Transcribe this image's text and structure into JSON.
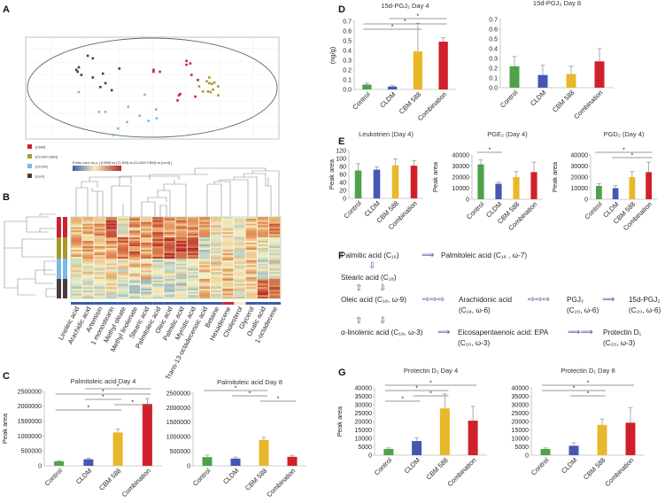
{
  "panels": {
    "A": "A",
    "B": "B",
    "C": "C",
    "D": "D",
    "E": "E",
    "F": "F",
    "G": "G"
  },
  "colors": {
    "Control": "#4ea24a",
    "CLDM": "#4457b5",
    "CBM 588": "#e8b82a",
    "Combination": "#d0202a",
    "error": "#9a9a9a"
  },
  "pca": {
    "groups": [
      {
        "name": "[CBM]",
        "color": "#cc2233",
        "points": [
          [
            0.1,
            1.4
          ],
          [
            0.1,
            1.25
          ],
          [
            0.6,
            1.25
          ],
          [
            2.7,
            2.1
          ],
          [
            2.7,
            1.8
          ],
          [
            3.0,
            1.9
          ],
          [
            3.1,
            1.0
          ],
          [
            3.6,
            0.6
          ],
          [
            3.4,
            -0.7
          ],
          [
            2.2,
            -0.5
          ],
          [
            2.1,
            -0.6
          ],
          [
            2.0,
            -1.0
          ]
        ]
      },
      {
        "name": "[CLDM+CBM]",
        "color": "#a89a2a",
        "points": [
          [
            4.5,
            0.8
          ],
          [
            4.3,
            0.5
          ],
          [
            4.5,
            0.35
          ],
          [
            4.7,
            0.3
          ],
          [
            4.9,
            0.4
          ],
          [
            5.2,
            0.1
          ],
          [
            3.7,
            0.1
          ],
          [
            4.0,
            -0.3
          ],
          [
            4.4,
            -0.3
          ],
          [
            4.6,
            -0.35
          ],
          [
            4.8,
            -0.15
          ],
          [
            5.2,
            -0.6
          ]
        ]
      },
      {
        "name": "[CLDM]",
        "color": "#7ab8e6",
        "points": [
          [
            -5.8,
            -0.35
          ],
          [
            -0.6,
            -0.55
          ],
          [
            0.3,
            -1.7
          ],
          [
            -1.9,
            -1.5
          ],
          [
            -3.7,
            -1.9
          ],
          [
            -4.2,
            -1.9
          ],
          [
            -1.0,
            -2.2
          ],
          [
            0.35,
            -2.4
          ],
          [
            -0.3,
            -2.6
          ],
          [
            -2.0,
            -2.7
          ],
          [
            -2.7,
            -3.2
          ],
          [
            -3.1,
            -3.7
          ]
        ]
      },
      {
        "name": "[cont]",
        "color": "#4a3c3c",
        "points": [
          [
            -5.1,
            2.5
          ],
          [
            -4.7,
            2.3
          ],
          [
            -5.8,
            1.6
          ],
          [
            -6.0,
            1.4
          ],
          [
            -5.9,
            1.25
          ],
          [
            -5.6,
            1.0
          ],
          [
            -3.9,
            1.1
          ],
          [
            -2.6,
            1.5
          ],
          [
            -4.7,
            0.8
          ],
          [
            -3.7,
            0.35
          ],
          [
            -4.1,
            0.05
          ],
          [
            -3.2,
            -0.2
          ]
        ]
      }
    ]
  },
  "heatmap": {
    "scale_title": "Entity color by p ( [CBM] vs [CLDM] vs [CLDM+CBM] vs [cont] )",
    "columns": [
      "Linoleic acid",
      "Arachidic acid",
      "Artemisin",
      "1 monostearin",
      "Methyl oleate",
      "Methyl linolenate",
      "Stearic acid",
      "Palmitoleic acid",
      "Oleic acid",
      "Palmitic acid",
      "Myristic acid",
      "Trans-13-octadecenoic acid",
      "Betaine",
      "Hexadecene",
      "Cholesterol",
      "Glycerol",
      "Oxalic acid",
      "1-octadecene"
    ],
    "groups": [
      "[CBM]",
      "[CLDM+CBM]",
      "[CLDM]",
      "[cont]"
    ],
    "levels": [
      [
        0.65,
        0.65,
        0.7,
        0.9,
        0.5,
        0.7,
        0.7,
        0.8,
        0.7,
        0.75,
        0.75,
        0.7,
        0.55,
        0.55,
        0.5,
        0.6,
        0.7,
        0.75
      ],
      [
        0.65,
        0.65,
        0.65,
        0.7,
        0.8,
        0.8,
        0.7,
        0.85,
        0.9,
        0.9,
        0.9,
        0.4,
        0.5,
        0.6,
        0.5,
        0.6,
        0.5,
        0.45
      ],
      [
        0.5,
        0.55,
        0.55,
        0.55,
        0.5,
        0.6,
        0.6,
        0.45,
        0.45,
        0.45,
        0.45,
        0.6,
        0.55,
        0.6,
        0.5,
        0.6,
        0.45,
        0.45
      ],
      [
        0.45,
        0.45,
        0.4,
        0.5,
        0.45,
        0.4,
        0.4,
        0.4,
        0.4,
        0.4,
        0.4,
        0.6,
        0.5,
        0.65,
        0.5,
        0.6,
        0.85,
        0.85
      ]
    ]
  },
  "pathway": {
    "palmitic": "Palmitic acid (C₁₆)",
    "palmitoleic": "Palmitoleic acid (C₁₆ , ω-7)",
    "stearic": "Stearic acid (C₁₈)",
    "oleic": "Oleic acid (C₁₈, ω-9)",
    "arachidonic": "Arachidonic acid",
    "arachidonic_sub": "(C₁₈, ω-6)",
    "pgj2": "PGJ₂",
    "pgj2_sub": "(C₂₀, ω-6)",
    "d15pgj2": "15d-PGJ₂",
    "d15pgj2_sub": "(C₂₀, ω-6)",
    "linolenic": "α-linolenic acid (C₁₈, ω-3)",
    "epa": "Eicosapentaenoic acid: EPA",
    "epa_sub": "(C₂₀, ω-3)",
    "protectin": "Protectin D₁",
    "protectin_sub": "(C₂₀, ω-3)"
  },
  "chart_data": [
    {
      "id": "C1",
      "type": "bar",
      "title": "Palmitoleic acid Day 4",
      "ylabel": "Peak area",
      "categories": [
        "Control",
        "CLDM",
        "CBM 588",
        "Combination"
      ],
      "values": [
        150000,
        220000,
        1120000,
        2080000
      ],
      "errors": [
        20000,
        40000,
        110000,
        180000
      ],
      "ylim": [
        0,
        2500000
      ],
      "yticks": [
        "0",
        "500000",
        "1000000",
        "1500000",
        "2000000",
        "2500000"
      ],
      "significance": [
        [
          1,
          3
        ],
        [
          0,
          3
        ],
        [
          1,
          2
        ],
        [
          2,
          3
        ],
        [
          0,
          2
        ]
      ],
      "sig_label": "*"
    },
    {
      "id": "C2",
      "type": "bar",
      "title": "Palmitoleic acid Day 8",
      "ylabel": "",
      "categories": [
        "Control",
        "CLDM",
        "CBM 588",
        "Combination"
      ],
      "values": [
        300000,
        250000,
        890000,
        310000
      ],
      "errors": [
        70000,
        50000,
        90000,
        50000
      ],
      "ylim": [
        0,
        2500000
      ],
      "yticks": [
        "0",
        "500000",
        "1000000",
        "1500000",
        "2000000",
        "2500000"
      ],
      "significance": [
        [
          0,
          2
        ],
        [
          1,
          2
        ],
        [
          2,
          3
        ]
      ],
      "sig_label": "*"
    },
    {
      "id": "D1",
      "type": "bar",
      "title": "15d-PGJ₂  Day 4",
      "ylabel": "(ng/g)",
      "categories": [
        "Control",
        "CLDM",
        "CBM 588",
        "Combination"
      ],
      "values": [
        0.05,
        0.03,
        0.39,
        0.49
      ],
      "errors": [
        0.015,
        0.01,
        0.29,
        0.04
      ],
      "ylim": [
        0,
        0.7
      ],
      "yticks": [
        "0.0",
        "0.1",
        "0.2",
        "0.3",
        "0.4",
        "0.5",
        "0.6",
        "0.7"
      ],
      "significance": [
        [
          1,
          3
        ],
        [
          0,
          3
        ],
        [
          0,
          2
        ]
      ],
      "sig_label": "*"
    },
    {
      "id": "D2",
      "type": "bar",
      "title": "15d-PGJ₂ Day 8",
      "ylabel": "",
      "categories": [
        "Control",
        "CLDM",
        "CBM 588",
        "Combination"
      ],
      "values": [
        0.22,
        0.13,
        0.14,
        0.27
      ],
      "errors": [
        0.1,
        0.1,
        0.08,
        0.13
      ],
      "ylim": [
        0,
        0.7
      ],
      "yticks": [
        "0.0",
        "0.1",
        "0.2",
        "0.3",
        "0.4",
        "0.5",
        "0.6",
        "0.7"
      ],
      "significance": [],
      "sig_label": "*"
    },
    {
      "id": "E1",
      "type": "bar",
      "title": "Leukotrien (Day 4)",
      "ylabel": "Peak area",
      "categories": [
        "Control",
        "CLDM",
        "CBM 588",
        "Combination"
      ],
      "values": [
        70,
        72,
        83,
        82
      ],
      "errors": [
        17,
        7,
        16,
        13
      ],
      "ylim": [
        0,
        120
      ],
      "yticks": [
        "0",
        "20",
        "40",
        "60",
        "80",
        "100",
        "120"
      ],
      "significance": [],
      "sig_label": "*"
    },
    {
      "id": "E2",
      "type": "bar",
      "title": "PGE₂ (Day 4)",
      "ylabel": "Peak area",
      "categories": [
        "Control",
        "CLDM",
        "CBM 588",
        "Combination"
      ],
      "values": [
        31500,
        14000,
        20000,
        24500
      ],
      "errors": [
        4000,
        1500,
        5000,
        9000
      ],
      "ylim": [
        0,
        40000
      ],
      "yticks": [
        "0",
        "10000",
        "20000",
        "30000",
        "40000"
      ],
      "significance": [
        [
          0,
          1
        ]
      ],
      "sig_label": "*"
    },
    {
      "id": "E3",
      "type": "bar",
      "title": "PGD₂ (Day 4)",
      "ylabel": "Peak area",
      "categories": [
        "Control",
        "CLDM",
        "CBM 588",
        "Combination"
      ],
      "values": [
        12000,
        10000,
        20000,
        24500
      ],
      "errors": [
        2000,
        2500,
        5000,
        9000
      ],
      "ylim": [
        0,
        40000
      ],
      "yticks": [
        "0",
        "10000",
        "20000",
        "30000",
        "40000"
      ],
      "significance": [
        [
          0,
          3
        ],
        [
          1,
          3
        ]
      ],
      "sig_label": "*"
    },
    {
      "id": "G1",
      "type": "bar",
      "title": "Protectin D₁ Day 4",
      "ylabel": "Peak area",
      "categories": [
        "Control",
        "CLDM",
        "CBM 588",
        "Combination"
      ],
      "values": [
        3700,
        8400,
        27800,
        20500
      ],
      "errors": [
        600,
        2000,
        8500,
        8500
      ],
      "ylim": [
        0,
        40000
      ],
      "yticks": [
        "0",
        "5000",
        "10000",
        "15000",
        "20000",
        "25000",
        "30000",
        "35000",
        "40000"
      ],
      "significance": [
        [
          0,
          3
        ],
        [
          0,
          2
        ],
        [
          1,
          2
        ],
        [
          0,
          1
        ]
      ],
      "sig_label": "*"
    },
    {
      "id": "G2",
      "type": "bar",
      "title": "Protectin D₁ Day 8",
      "ylabel": "",
      "categories": [
        "Control",
        "CLDM",
        "CBM 588",
        "Combination"
      ],
      "values": [
        3700,
        5600,
        18000,
        19300
      ],
      "errors": [
        600,
        1800,
        3500,
        9000
      ],
      "ylim": [
        0,
        40000
      ],
      "yticks": [
        "0",
        "5000",
        "10000",
        "15000",
        "20000",
        "25000",
        "30000",
        "35000",
        "40000"
      ],
      "significance": [
        [
          0,
          3
        ],
        [
          0,
          2
        ],
        [
          1,
          2
        ]
      ],
      "sig_label": "*"
    }
  ]
}
